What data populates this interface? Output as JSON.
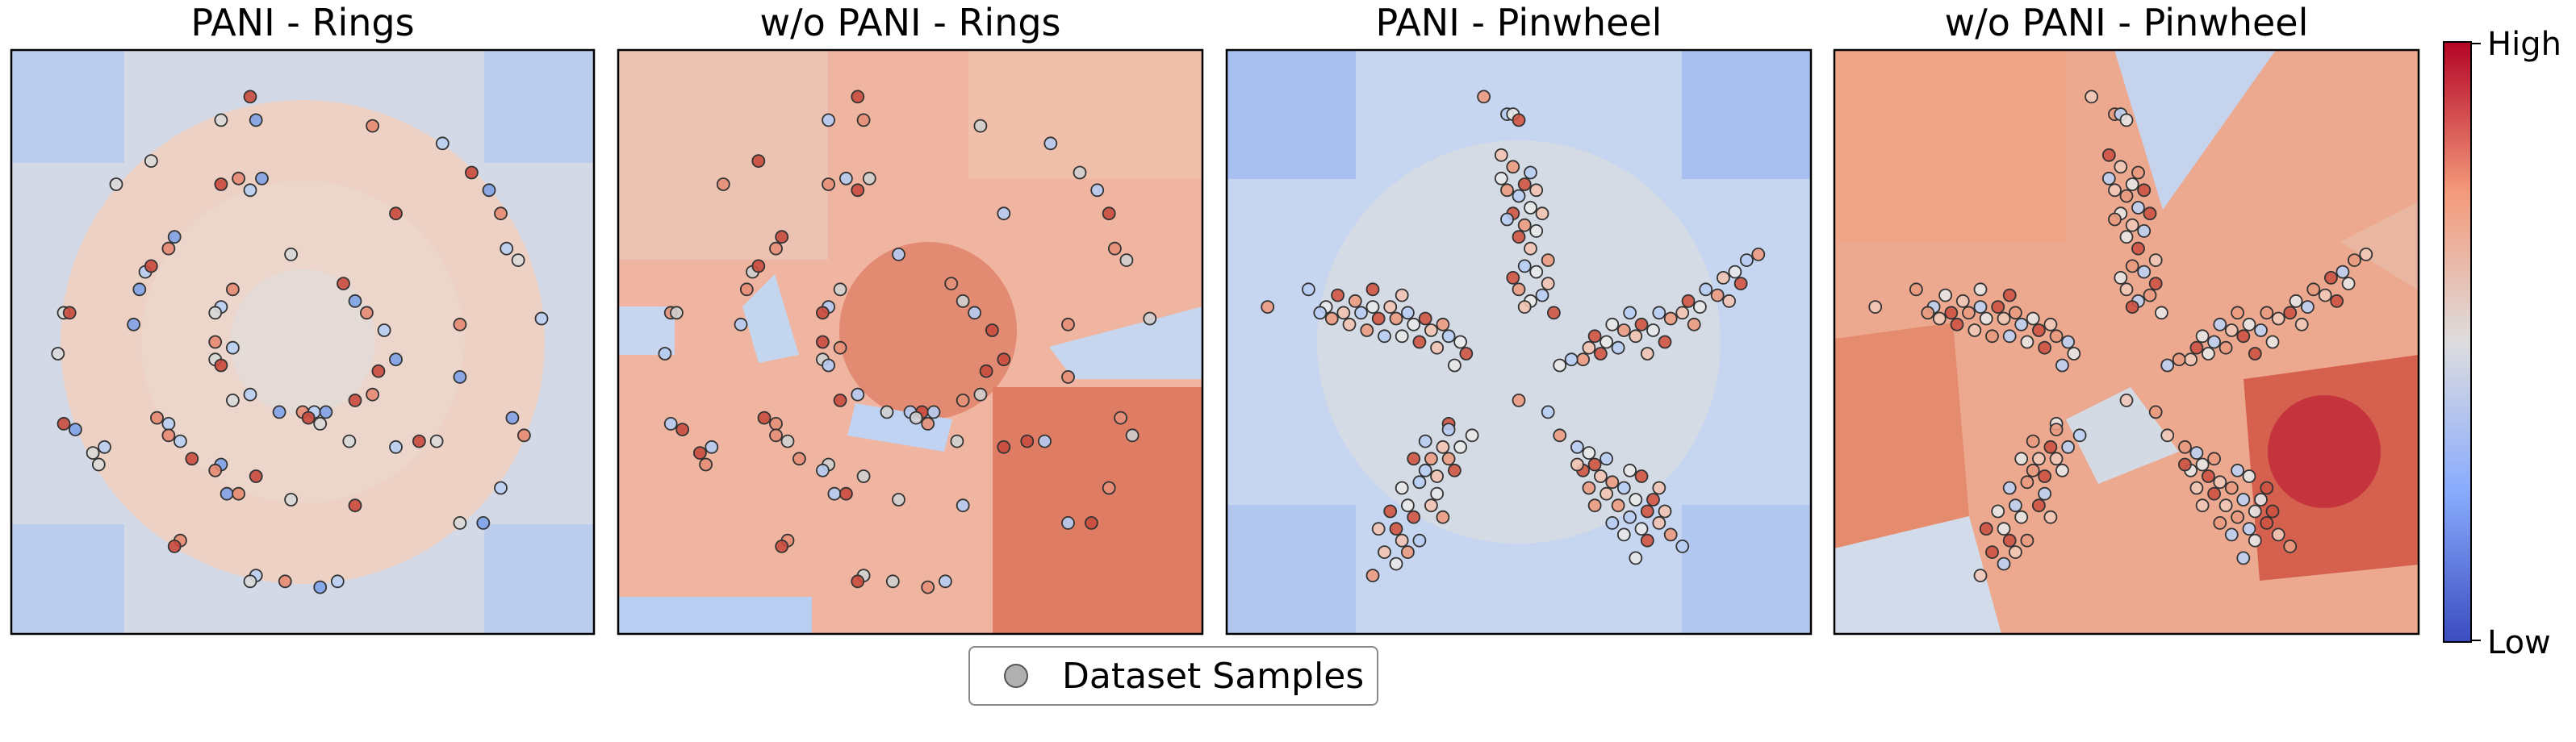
{
  "chart_data": {
    "type": "heatmap",
    "colorbar": {
      "colormap": "coolwarm",
      "low_label": "Low",
      "high_label": "High"
    },
    "legend": {
      "label": "Dataset Samples",
      "placement": "bottom-center"
    },
    "colors": {
      "low": "#3b4cc0",
      "mid": "#dddddd",
      "high": "#b40426",
      "sample_fill": "#b0b0b0",
      "sample_edge": "#333333"
    },
    "panels": [
      {
        "title": "PANI - Rings",
        "dataset": "rings",
        "model": "pani"
      },
      {
        "title": "w/o PANI - Rings",
        "dataset": "rings",
        "model": "baseline"
      },
      {
        "title": "PANI - Pinwheel",
        "dataset": "pinwheel",
        "model": "pani"
      },
      {
        "title": "w/o PANI - Pinwheel",
        "dataset": "pinwheel",
        "model": "baseline"
      }
    ],
    "rings_samples": [
      [
        0.36,
        0.88
      ],
      [
        0.41,
        0.92
      ],
      [
        0.42,
        0.88
      ],
      [
        0.62,
        0.87
      ],
      [
        0.74,
        0.84
      ],
      [
        0.24,
        0.81
      ],
      [
        0.36,
        0.77
      ],
      [
        0.43,
        0.78
      ],
      [
        0.39,
        0.78
      ],
      [
        0.41,
        0.76
      ],
      [
        0.18,
        0.77
      ],
      [
        0.79,
        0.79
      ],
      [
        0.82,
        0.76
      ],
      [
        0.84,
        0.72
      ],
      [
        0.85,
        0.66
      ],
      [
        0.87,
        0.64
      ],
      [
        0.66,
        0.72
      ],
      [
        0.28,
        0.68
      ],
      [
        0.27,
        0.66
      ],
      [
        0.23,
        0.62
      ],
      [
        0.48,
        0.65
      ],
      [
        0.24,
        0.63
      ],
      [
        0.22,
        0.59
      ],
      [
        0.38,
        0.59
      ],
      [
        0.36,
        0.56
      ],
      [
        0.35,
        0.55
      ],
      [
        0.57,
        0.6
      ],
      [
        0.59,
        0.57
      ],
      [
        0.61,
        0.55
      ],
      [
        0.64,
        0.52
      ],
      [
        0.09,
        0.55
      ],
      [
        0.1,
        0.55
      ],
      [
        0.21,
        0.53
      ],
      [
        0.35,
        0.5
      ],
      [
        0.38,
        0.49
      ],
      [
        0.35,
        0.47
      ],
      [
        0.36,
        0.46
      ],
      [
        0.66,
        0.47
      ],
      [
        0.77,
        0.53
      ],
      [
        0.91,
        0.54
      ],
      [
        0.08,
        0.48
      ],
      [
        0.63,
        0.45
      ],
      [
        0.77,
        0.44
      ],
      [
        0.62,
        0.41
      ],
      [
        0.41,
        0.41
      ],
      [
        0.38,
        0.4
      ],
      [
        0.59,
        0.4
      ],
      [
        0.46,
        0.38
      ],
      [
        0.5,
        0.38
      ],
      [
        0.52,
        0.38
      ],
      [
        0.53,
        0.36
      ],
      [
        0.51,
        0.37
      ],
      [
        0.54,
        0.38
      ],
      [
        0.25,
        0.37
      ],
      [
        0.27,
        0.36
      ],
      [
        0.58,
        0.33
      ],
      [
        0.09,
        0.36
      ],
      [
        0.11,
        0.35
      ],
      [
        0.27,
        0.34
      ],
      [
        0.29,
        0.33
      ],
      [
        0.73,
        0.33
      ],
      [
        0.7,
        0.33
      ],
      [
        0.86,
        0.37
      ],
      [
        0.88,
        0.34
      ],
      [
        0.16,
        0.32
      ],
      [
        0.14,
        0.31
      ],
      [
        0.31,
        0.3
      ],
      [
        0.36,
        0.29
      ],
      [
        0.35,
        0.28
      ],
      [
        0.66,
        0.32
      ],
      [
        0.15,
        0.29
      ],
      [
        0.42,
        0.27
      ],
      [
        0.37,
        0.24
      ],
      [
        0.39,
        0.24
      ],
      [
        0.84,
        0.25
      ],
      [
        0.48,
        0.23
      ],
      [
        0.59,
        0.22
      ],
      [
        0.81,
        0.19
      ],
      [
        0.29,
        0.16
      ],
      [
        0.42,
        0.1
      ],
      [
        0.77,
        0.19
      ],
      [
        0.28,
        0.15
      ],
      [
        0.53,
        0.08
      ],
      [
        0.47,
        0.09
      ],
      [
        0.56,
        0.09
      ],
      [
        0.41,
        0.09
      ]
    ],
    "pinwheel_samples": [
      [
        0.44,
        0.92
      ],
      [
        0.48,
        0.89
      ],
      [
        0.49,
        0.89
      ],
      [
        0.5,
        0.88
      ],
      [
        0.47,
        0.82
      ],
      [
        0.49,
        0.8
      ],
      [
        0.52,
        0.79
      ],
      [
        0.47,
        0.78
      ],
      [
        0.51,
        0.77
      ],
      [
        0.53,
        0.76
      ],
      [
        0.48,
        0.76
      ],
      [
        0.5,
        0.75
      ],
      [
        0.52,
        0.73
      ],
      [
        0.49,
        0.72
      ],
      [
        0.54,
        0.72
      ],
      [
        0.51,
        0.7
      ],
      [
        0.48,
        0.71
      ],
      [
        0.53,
        0.69
      ],
      [
        0.5,
        0.68
      ],
      [
        0.52,
        0.66
      ],
      [
        0.55,
        0.64
      ],
      [
        0.51,
        0.63
      ],
      [
        0.53,
        0.62
      ],
      [
        0.49,
        0.61
      ],
      [
        0.55,
        0.6
      ],
      [
        0.5,
        0.59
      ],
      [
        0.54,
        0.58
      ],
      [
        0.52,
        0.57
      ],
      [
        0.56,
        0.55
      ],
      [
        0.51,
        0.56
      ],
      [
        0.91,
        0.65
      ],
      [
        0.89,
        0.64
      ],
      [
        0.87,
        0.62
      ],
      [
        0.88,
        0.6
      ],
      [
        0.85,
        0.61
      ],
      [
        0.84,
        0.58
      ],
      [
        0.82,
        0.59
      ],
      [
        0.81,
        0.56
      ],
      [
        0.79,
        0.57
      ],
      [
        0.78,
        0.55
      ],
      [
        0.76,
        0.54
      ],
      [
        0.74,
        0.55
      ],
      [
        0.73,
        0.52
      ],
      [
        0.71,
        0.53
      ],
      [
        0.7,
        0.51
      ],
      [
        0.68,
        0.52
      ],
      [
        0.67,
        0.49
      ],
      [
        0.65,
        0.5
      ],
      [
        0.64,
        0.48
      ],
      [
        0.62,
        0.49
      ],
      [
        0.61,
        0.47
      ],
      [
        0.59,
        0.47
      ],
      [
        0.57,
        0.46
      ],
      [
        0.75,
        0.5
      ],
      [
        0.72,
        0.48
      ],
      [
        0.8,
        0.53
      ],
      [
        0.69,
        0.55
      ],
      [
        0.66,
        0.53
      ],
      [
        0.63,
        0.51
      ],
      [
        0.86,
        0.57
      ],
      [
        0.07,
        0.56
      ],
      [
        0.14,
        0.59
      ],
      [
        0.17,
        0.56
      ],
      [
        0.19,
        0.58
      ],
      [
        0.2,
        0.55
      ],
      [
        0.22,
        0.57
      ],
      [
        0.23,
        0.55
      ],
      [
        0.25,
        0.56
      ],
      [
        0.26,
        0.54
      ],
      [
        0.28,
        0.56
      ],
      [
        0.29,
        0.54
      ],
      [
        0.31,
        0.55
      ],
      [
        0.32,
        0.53
      ],
      [
        0.34,
        0.54
      ],
      [
        0.35,
        0.52
      ],
      [
        0.37,
        0.53
      ],
      [
        0.38,
        0.51
      ],
      [
        0.4,
        0.5
      ],
      [
        0.41,
        0.48
      ],
      [
        0.21,
        0.53
      ],
      [
        0.24,
        0.52
      ],
      [
        0.27,
        0.51
      ],
      [
        0.3,
        0.51
      ],
      [
        0.33,
        0.5
      ],
      [
        0.36,
        0.49
      ],
      [
        0.18,
        0.54
      ],
      [
        0.16,
        0.55
      ],
      [
        0.39,
        0.46
      ],
      [
        0.25,
        0.59
      ],
      [
        0.3,
        0.58
      ],
      [
        0.5,
        0.4
      ],
      [
        0.55,
        0.38
      ],
      [
        0.42,
        0.34
      ],
      [
        0.38,
        0.36
      ],
      [
        0.37,
        0.32
      ],
      [
        0.35,
        0.3
      ],
      [
        0.33,
        0.26
      ],
      [
        0.31,
        0.22
      ],
      [
        0.29,
        0.18
      ],
      [
        0.27,
        0.14
      ],
      [
        0.25,
        0.1
      ],
      [
        0.34,
        0.28
      ],
      [
        0.36,
        0.24
      ],
      [
        0.32,
        0.2
      ],
      [
        0.3,
        0.16
      ],
      [
        0.38,
        0.3
      ],
      [
        0.34,
        0.33
      ],
      [
        0.3,
        0.25
      ],
      [
        0.28,
        0.21
      ],
      [
        0.36,
        0.27
      ],
      [
        0.37,
        0.2
      ],
      [
        0.33,
        0.16
      ],
      [
        0.29,
        0.12
      ],
      [
        0.39,
        0.28
      ],
      [
        0.35,
        0.22
      ],
      [
        0.31,
        0.14
      ],
      [
        0.38,
        0.35
      ],
      [
        0.4,
        0.32
      ],
      [
        0.32,
        0.3
      ],
      [
        0.26,
        0.18
      ],
      [
        0.57,
        0.34
      ],
      [
        0.6,
        0.32
      ],
      [
        0.62,
        0.31
      ],
      [
        0.63,
        0.29
      ],
      [
        0.64,
        0.27
      ],
      [
        0.66,
        0.26
      ],
      [
        0.68,
        0.25
      ],
      [
        0.7,
        0.23
      ],
      [
        0.72,
        0.21
      ],
      [
        0.74,
        0.19
      ],
      [
        0.76,
        0.17
      ],
      [
        0.78,
        0.15
      ],
      [
        0.7,
        0.13
      ],
      [
        0.61,
        0.28
      ],
      [
        0.65,
        0.24
      ],
      [
        0.67,
        0.22
      ],
      [
        0.69,
        0.2
      ],
      [
        0.71,
        0.18
      ],
      [
        0.73,
        0.23
      ],
      [
        0.75,
        0.21
      ],
      [
        0.63,
        0.22
      ],
      [
        0.66,
        0.19
      ],
      [
        0.68,
        0.17
      ],
      [
        0.72,
        0.16
      ],
      [
        0.74,
        0.25
      ],
      [
        0.62,
        0.25
      ],
      [
        0.65,
        0.3
      ],
      [
        0.69,
        0.28
      ],
      [
        0.71,
        0.27
      ],
      [
        0.6,
        0.29
      ]
    ]
  }
}
